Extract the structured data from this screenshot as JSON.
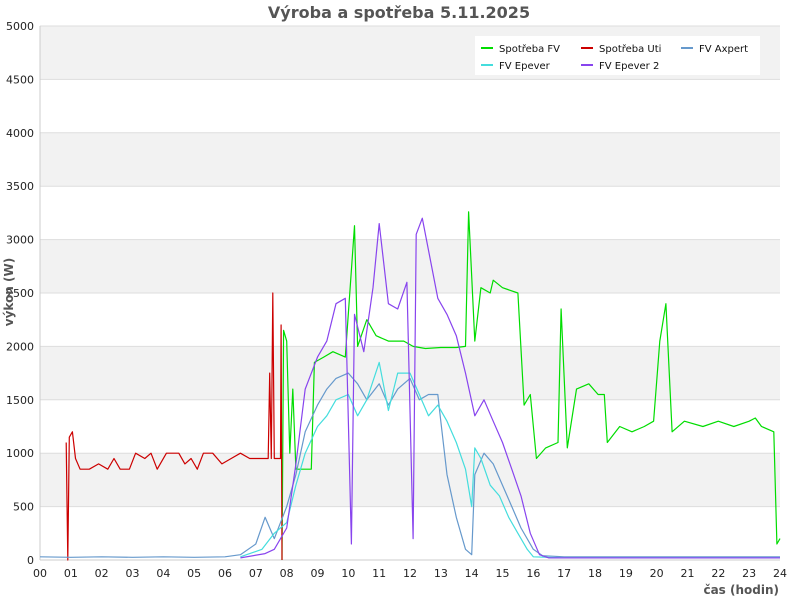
{
  "chart_data": {
    "type": "line",
    "title": "Výroba a spotřeba 5.11.2025",
    "xlabel": "čas (hodin)",
    "ylabel": "výkon (W)",
    "xlim": [
      0,
      24
    ],
    "ylim": [
      0,
      5000
    ],
    "x_ticks": [
      "00",
      "01",
      "02",
      "03",
      "04",
      "05",
      "06",
      "07",
      "08",
      "09",
      "10",
      "11",
      "12",
      "13",
      "14",
      "15",
      "16",
      "17",
      "18",
      "19",
      "20",
      "21",
      "22",
      "23",
      "24"
    ],
    "y_ticks": [
      0,
      500,
      1000,
      1500,
      2000,
      2500,
      3000,
      3500,
      4000,
      4500,
      5000
    ],
    "grid": "horizontal bands",
    "legend_position": "top-right",
    "series": [
      {
        "name": "Spotřeba FV",
        "color": "#00dd00",
        "points": [
          [
            7.85,
            0
          ],
          [
            7.9,
            2150
          ],
          [
            8.0,
            2050
          ],
          [
            8.1,
            1000
          ],
          [
            8.2,
            1600
          ],
          [
            8.3,
            850
          ],
          [
            8.6,
            850
          ],
          [
            8.8,
            850
          ],
          [
            8.9,
            1850
          ],
          [
            9.2,
            1900
          ],
          [
            9.5,
            1950
          ],
          [
            9.9,
            1900
          ],
          [
            10.2,
            3130
          ],
          [
            10.3,
            2000
          ],
          [
            10.6,
            2250
          ],
          [
            10.9,
            2100
          ],
          [
            11.3,
            2050
          ],
          [
            11.8,
            2050
          ],
          [
            12.1,
            2000
          ],
          [
            12.5,
            1980
          ],
          [
            13.0,
            1990
          ],
          [
            13.5,
            1990
          ],
          [
            13.8,
            2000
          ],
          [
            13.9,
            3260
          ],
          [
            14.1,
            2050
          ],
          [
            14.3,
            2550
          ],
          [
            14.6,
            2500
          ],
          [
            14.7,
            2620
          ],
          [
            15.0,
            2550
          ],
          [
            15.5,
            2500
          ],
          [
            15.7,
            1450
          ],
          [
            15.9,
            1550
          ],
          [
            16.1,
            950
          ],
          [
            16.4,
            1050
          ],
          [
            16.8,
            1100
          ],
          [
            16.9,
            2350
          ],
          [
            17.1,
            1050
          ],
          [
            17.4,
            1600
          ],
          [
            17.8,
            1650
          ],
          [
            18.1,
            1550
          ],
          [
            18.3,
            1550
          ],
          [
            18.4,
            1100
          ],
          [
            18.8,
            1250
          ],
          [
            19.2,
            1200
          ],
          [
            19.6,
            1250
          ],
          [
            19.9,
            1300
          ],
          [
            20.1,
            2050
          ],
          [
            20.3,
            2400
          ],
          [
            20.5,
            1200
          ],
          [
            20.9,
            1300
          ],
          [
            21.5,
            1250
          ],
          [
            22.0,
            1300
          ],
          [
            22.5,
            1250
          ],
          [
            23.0,
            1300
          ],
          [
            23.2,
            1330
          ],
          [
            23.4,
            1250
          ],
          [
            23.8,
            1200
          ],
          [
            23.9,
            150
          ],
          [
            24.0,
            200
          ]
        ]
      },
      {
        "name": "Spotřeba Uti",
        "color": "#cc0000",
        "points": [
          [
            0.85,
            1100
          ],
          [
            0.9,
            0
          ],
          [
            0.95,
            1150
          ],
          [
            1.05,
            1200
          ],
          [
            1.15,
            950
          ],
          [
            1.3,
            850
          ],
          [
            1.6,
            850
          ],
          [
            1.9,
            900
          ],
          [
            2.2,
            850
          ],
          [
            2.4,
            950
          ],
          [
            2.6,
            850
          ],
          [
            2.9,
            850
          ],
          [
            3.1,
            1000
          ],
          [
            3.4,
            950
          ],
          [
            3.6,
            1000
          ],
          [
            3.8,
            850
          ],
          [
            4.1,
            1000
          ],
          [
            4.5,
            1000
          ],
          [
            4.7,
            900
          ],
          [
            4.9,
            950
          ],
          [
            5.1,
            850
          ],
          [
            5.3,
            1000
          ],
          [
            5.6,
            1000
          ],
          [
            5.9,
            900
          ],
          [
            6.2,
            950
          ],
          [
            6.5,
            1000
          ],
          [
            6.8,
            950
          ],
          [
            7.1,
            950
          ],
          [
            7.4,
            950
          ],
          [
            7.45,
            1750
          ],
          [
            7.5,
            950
          ],
          [
            7.55,
            2500
          ],
          [
            7.6,
            950
          ],
          [
            7.8,
            950
          ],
          [
            7.82,
            2200
          ],
          [
            7.85,
            0
          ]
        ]
      },
      {
        "name": "FV Axpert",
        "color": "#6699cc",
        "points": [
          [
            0,
            30
          ],
          [
            1,
            25
          ],
          [
            2,
            30
          ],
          [
            3,
            25
          ],
          [
            4,
            30
          ],
          [
            5,
            25
          ],
          [
            6,
            30
          ],
          [
            6.5,
            50
          ],
          [
            7.0,
            150
          ],
          [
            7.3,
            400
          ],
          [
            7.6,
            200
          ],
          [
            8.0,
            500
          ],
          [
            8.3,
            800
          ],
          [
            8.6,
            1200
          ],
          [
            9.0,
            1450
          ],
          [
            9.3,
            1600
          ],
          [
            9.6,
            1700
          ],
          [
            10.0,
            1750
          ],
          [
            10.3,
            1650
          ],
          [
            10.6,
            1500
          ],
          [
            11.0,
            1650
          ],
          [
            11.3,
            1450
          ],
          [
            11.6,
            1600
          ],
          [
            12.0,
            1700
          ],
          [
            12.3,
            1500
          ],
          [
            12.6,
            1550
          ],
          [
            12.9,
            1550
          ],
          [
            13.0,
            1300
          ],
          [
            13.2,
            800
          ],
          [
            13.5,
            400
          ],
          [
            13.8,
            100
          ],
          [
            14.0,
            50
          ],
          [
            14.1,
            800
          ],
          [
            14.4,
            1000
          ],
          [
            14.7,
            900
          ],
          [
            15.0,
            700
          ],
          [
            15.3,
            500
          ],
          [
            15.6,
            300
          ],
          [
            16.0,
            100
          ],
          [
            16.3,
            40
          ],
          [
            17,
            30
          ],
          [
            18,
            30
          ],
          [
            20,
            30
          ],
          [
            22,
            30
          ],
          [
            24,
            30
          ]
        ]
      },
      {
        "name": "FV Epever",
        "color": "#44dddd",
        "points": [
          [
            6.5,
            30
          ],
          [
            7.2,
            100
          ],
          [
            7.6,
            250
          ],
          [
            8.0,
            350
          ],
          [
            8.3,
            700
          ],
          [
            8.6,
            1000
          ],
          [
            9.0,
            1250
          ],
          [
            9.3,
            1350
          ],
          [
            9.6,
            1500
          ],
          [
            10.0,
            1550
          ],
          [
            10.3,
            1350
          ],
          [
            10.6,
            1500
          ],
          [
            11.0,
            1850
          ],
          [
            11.3,
            1400
          ],
          [
            11.6,
            1750
          ],
          [
            12.0,
            1750
          ],
          [
            12.3,
            1550
          ],
          [
            12.6,
            1350
          ],
          [
            12.9,
            1450
          ],
          [
            13.2,
            1300
          ],
          [
            13.5,
            1100
          ],
          [
            13.8,
            850
          ],
          [
            14.0,
            500
          ],
          [
            14.1,
            1050
          ],
          [
            14.3,
            950
          ],
          [
            14.6,
            700
          ],
          [
            14.9,
            600
          ],
          [
            15.2,
            400
          ],
          [
            15.5,
            250
          ],
          [
            15.8,
            100
          ],
          [
            16.0,
            30
          ],
          [
            17,
            20
          ],
          [
            20,
            20
          ],
          [
            24,
            20
          ]
        ]
      },
      {
        "name": "FV Epever 2",
        "color": "#8844ee",
        "points": [
          [
            6.5,
            20
          ],
          [
            7.3,
            60
          ],
          [
            7.6,
            100
          ],
          [
            8.0,
            300
          ],
          [
            8.3,
            900
          ],
          [
            8.6,
            1600
          ],
          [
            9.0,
            1900
          ],
          [
            9.3,
            2050
          ],
          [
            9.6,
            2400
          ],
          [
            9.9,
            2450
          ],
          [
            10.1,
            150
          ],
          [
            10.2,
            2300
          ],
          [
            10.5,
            1950
          ],
          [
            10.8,
            2550
          ],
          [
            11.0,
            3150
          ],
          [
            11.3,
            2400
          ],
          [
            11.6,
            2350
          ],
          [
            11.9,
            2600
          ],
          [
            12.1,
            200
          ],
          [
            12.2,
            3050
          ],
          [
            12.4,
            3200
          ],
          [
            12.7,
            2750
          ],
          [
            12.9,
            2450
          ],
          [
            13.2,
            2300
          ],
          [
            13.5,
            2100
          ],
          [
            13.8,
            1750
          ],
          [
            14.1,
            1350
          ],
          [
            14.4,
            1500
          ],
          [
            14.7,
            1300
          ],
          [
            15.0,
            1100
          ],
          [
            15.3,
            850
          ],
          [
            15.6,
            600
          ],
          [
            15.9,
            250
          ],
          [
            16.2,
            50
          ],
          [
            16.5,
            20
          ],
          [
            18,
            20
          ],
          [
            24,
            20
          ]
        ]
      }
    ]
  }
}
